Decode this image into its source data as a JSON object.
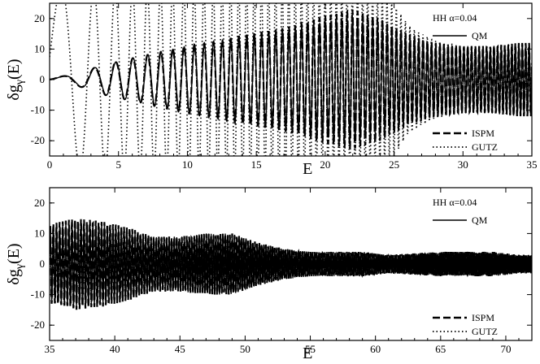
{
  "chart_data": [
    {
      "type": "line",
      "panel": "top",
      "ylabel_main": "δg",
      "ylabel_sub": "γ",
      "ylabel_tail": "(E)",
      "xlabel": "E",
      "xlim": [
        0,
        35
      ],
      "ylim": [
        -25,
        25
      ],
      "xticks": [
        0,
        5,
        10,
        15,
        20,
        25,
        30,
        35
      ],
      "yticks": [
        -20,
        -10,
        0,
        10,
        20
      ],
      "grid": false,
      "legend_placement": "top-right and bottom-right",
      "legend_title": "HH  α=0.04",
      "series": [
        {
          "name": "QM",
          "style": "solid",
          "color": "#000000",
          "x": [
            0,
            2,
            4,
            6,
            8,
            10,
            12,
            14,
            16,
            18,
            20,
            22,
            24,
            26,
            28,
            30,
            32,
            34,
            35
          ],
          "amplitude": [
            0.3,
            2,
            5,
            7,
            9,
            11,
            12.5,
            14,
            15.5,
            17,
            19,
            20,
            17,
            14,
            12,
            11,
            11,
            12,
            12
          ]
        },
        {
          "name": "ISPM",
          "style": "dashed",
          "color": "#000000",
          "x": [
            0,
            2,
            4,
            6,
            8,
            10,
            12,
            14,
            16,
            18,
            20,
            22,
            24,
            26,
            28,
            30,
            32,
            34,
            35
          ],
          "amplitude": [
            0.3,
            2,
            5,
            7,
            9,
            11,
            12.5,
            14.5,
            16,
            18,
            21,
            23,
            20,
            15,
            12,
            11,
            11,
            12,
            12
          ]
        },
        {
          "name": "GUTZ",
          "style": "dotted",
          "color": "#000000",
          "x": [
            0,
            5,
            10,
            15,
            20,
            22,
            24,
            25,
            26,
            27,
            28,
            30,
            35
          ],
          "amplitude": [
            30,
            30,
            30,
            30,
            30,
            30,
            28,
            25,
            18,
            15,
            13,
            11,
            11
          ]
        }
      ]
    },
    {
      "type": "line",
      "panel": "bottom",
      "ylabel_main": "δg",
      "ylabel_sub": "γ",
      "ylabel_tail": "(E)",
      "xlabel": "E",
      "xlim": [
        35,
        72
      ],
      "ylim": [
        -25,
        25
      ],
      "xticks": [
        35,
        40,
        45,
        50,
        55,
        60,
        65,
        70
      ],
      "yticks": [
        -20,
        -10,
        0,
        10,
        20
      ],
      "grid": false,
      "legend_placement": "top-right and bottom-right",
      "legend_title": "HH  α=0.04",
      "series": [
        {
          "name": "QM",
          "style": "solid",
          "color": "#000000",
          "x": [
            35,
            37,
            39,
            41,
            43,
            45,
            47,
            49,
            51,
            53,
            55,
            57,
            59,
            61,
            63,
            65,
            67,
            69,
            71,
            72
          ],
          "amplitude": [
            12,
            14,
            13,
            11,
            9,
            9,
            10,
            10,
            7,
            5,
            4,
            4,
            4,
            3,
            3.5,
            4,
            4,
            4,
            3,
            3
          ]
        },
        {
          "name": "ISPM",
          "style": "dashed",
          "color": "#000000",
          "x": [
            35,
            37,
            39,
            41,
            43,
            45,
            47,
            49,
            51,
            53,
            55,
            57,
            59,
            61,
            63,
            65,
            67,
            69,
            71,
            72
          ],
          "amplitude": [
            13,
            15,
            14,
            12,
            9,
            9,
            10,
            10,
            7,
            5,
            4,
            4,
            4,
            3,
            3.5,
            4,
            4,
            4,
            3,
            3
          ]
        },
        {
          "name": "GUTZ",
          "style": "dotted",
          "color": "#000000",
          "x": [
            35,
            37,
            39,
            41,
            43,
            45,
            47,
            49,
            51,
            53,
            55,
            57,
            59,
            61,
            63,
            65,
            67,
            69,
            71,
            72
          ],
          "amplitude": [
            11,
            13,
            12,
            10,
            8,
            8,
            9,
            9,
            6.5,
            5,
            4,
            4,
            4,
            3,
            3.5,
            4,
            4,
            4,
            3,
            3
          ]
        }
      ]
    }
  ]
}
